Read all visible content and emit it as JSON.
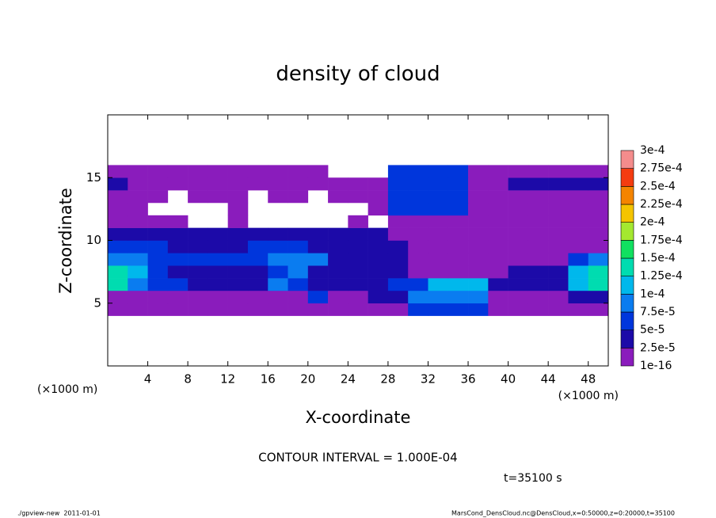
{
  "chart_data": {
    "type": "heatmap",
    "title": "density of cloud",
    "xlabel": "X-coordinate",
    "ylabel": "Z-coordinate",
    "x_units": "(×1000 m)",
    "xlim": [
      0,
      50
    ],
    "xticks": [
      4,
      8,
      12,
      16,
      20,
      24,
      28,
      32,
      36,
      40,
      44,
      48
    ],
    "ylim": [
      0,
      20
    ],
    "yticks": [
      5,
      10,
      15
    ],
    "x": [
      1,
      3,
      5,
      7,
      9,
      11,
      13,
      15,
      17,
      19,
      21,
      23,
      25,
      27,
      29,
      31,
      33,
      35,
      37,
      39,
      41,
      43,
      45,
      47,
      49
    ],
    "y": [
      4.5,
      5.5,
      6.5,
      7.5,
      8.5,
      9.5,
      10.5,
      11.5,
      12.5,
      13.5,
      14.5,
      15.5
    ],
    "values": [
      [
        1e-16,
        1e-16,
        1e-16,
        1e-16,
        1e-16,
        1e-16,
        1e-16,
        1e-16,
        1e-16,
        1e-16,
        1e-16,
        1e-16,
        1e-16,
        1e-16,
        1e-16,
        6e-05,
        6e-05,
        6e-05,
        6e-05,
        1e-16,
        1e-16,
        1e-16,
        1e-16,
        1e-16,
        1e-16
      ],
      [
        1e-16,
        1e-16,
        1e-16,
        1e-16,
        1e-16,
        1e-16,
        1e-16,
        1e-16,
        1e-16,
        1e-16,
        6e-05,
        1e-16,
        1e-16,
        3e-05,
        3e-05,
        9e-05,
        9e-05,
        9e-05,
        9e-05,
        1e-16,
        1e-16,
        1e-16,
        1e-16,
        3e-05,
        3e-05
      ],
      [
        0.00013,
        9e-05,
        6e-05,
        6e-05,
        3e-05,
        3e-05,
        3e-05,
        3e-05,
        9e-05,
        6e-05,
        3e-05,
        3e-05,
        3e-05,
        3e-05,
        6e-05,
        6e-05,
        0.00011,
        0.00011,
        0.00011,
        3e-05,
        3e-05,
        3e-05,
        3e-05,
        0.00011,
        0.00013
      ],
      [
        0.00013,
        0.00011,
        6e-05,
        3e-05,
        3e-05,
        3e-05,
        3e-05,
        3e-05,
        6e-05,
        9e-05,
        3e-05,
        3e-05,
        3e-05,
        3e-05,
        3e-05,
        1e-16,
        1e-16,
        1e-16,
        1e-16,
        1e-16,
        3e-05,
        3e-05,
        3e-05,
        0.00011,
        0.00013
      ],
      [
        9e-05,
        9e-05,
        6e-05,
        6e-05,
        6e-05,
        6e-05,
        6e-05,
        6e-05,
        9e-05,
        9e-05,
        9e-05,
        3e-05,
        3e-05,
        3e-05,
        3e-05,
        1e-16,
        1e-16,
        1e-16,
        1e-16,
        1e-16,
        1e-16,
        1e-16,
        1e-16,
        6e-05,
        9e-05
      ],
      [
        6e-05,
        6e-05,
        6e-05,
        3e-05,
        3e-05,
        3e-05,
        3e-05,
        6e-05,
        6e-05,
        6e-05,
        3e-05,
        3e-05,
        3e-05,
        3e-05,
        3e-05,
        1e-16,
        1e-16,
        1e-16,
        1e-16,
        1e-16,
        1e-16,
        1e-16,
        1e-16,
        1e-16,
        1e-16
      ],
      [
        3e-05,
        3e-05,
        3e-05,
        3e-05,
        3e-05,
        3e-05,
        3e-05,
        3e-05,
        3e-05,
        3e-05,
        3e-05,
        3e-05,
        3e-05,
        3e-05,
        1e-16,
        1e-16,
        1e-16,
        1e-16,
        1e-16,
        1e-16,
        1e-16,
        1e-16,
        1e-16,
        1e-16,
        1e-16
      ],
      [
        1e-16,
        1e-16,
        1e-16,
        1e-16,
        null,
        null,
        1e-16,
        null,
        null,
        null,
        null,
        null,
        1e-16,
        null,
        1e-16,
        1e-16,
        1e-16,
        1e-16,
        1e-16,
        1e-16,
        1e-16,
        1e-16,
        1e-16,
        1e-16,
        1e-16
      ],
      [
        1e-16,
        1e-16,
        null,
        null,
        null,
        null,
        1e-16,
        null,
        null,
        null,
        null,
        null,
        null,
        1e-16,
        6e-05,
        6e-05,
        6e-05,
        6e-05,
        1e-16,
        1e-16,
        1e-16,
        1e-16,
        1e-16,
        1e-16,
        1e-16
      ],
      [
        1e-16,
        1e-16,
        1e-16,
        null,
        1e-16,
        1e-16,
        1e-16,
        null,
        1e-16,
        1e-16,
        null,
        1e-16,
        1e-16,
        1e-16,
        6e-05,
        6e-05,
        6e-05,
        6e-05,
        1e-16,
        1e-16,
        1e-16,
        1e-16,
        1e-16,
        1e-16,
        1e-16
      ],
      [
        3e-05,
        1e-16,
        1e-16,
        1e-16,
        1e-16,
        1e-16,
        1e-16,
        1e-16,
        1e-16,
        1e-16,
        1e-16,
        1e-16,
        1e-16,
        1e-16,
        6e-05,
        6e-05,
        6e-05,
        6e-05,
        1e-16,
        1e-16,
        3e-05,
        3e-05,
        3e-05,
        3e-05,
        3e-05
      ],
      [
        1e-16,
        1e-16,
        1e-16,
        1e-16,
        1e-16,
        1e-16,
        1e-16,
        1e-16,
        1e-16,
        1e-16,
        1e-16,
        null,
        null,
        null,
        6e-05,
        6e-05,
        6e-05,
        6e-05,
        1e-16,
        1e-16,
        1e-16,
        1e-16,
        1e-16,
        1e-16,
        1e-16
      ]
    ],
    "colorbar": {
      "levels": [
        {
          "value": 1e-16,
          "label": "1e-16"
        },
        {
          "value": 2.5e-05,
          "label": "2.5e-5"
        },
        {
          "value": 5e-05,
          "label": "5e-5"
        },
        {
          "value": 7.5e-05,
          "label": "7.5e-5"
        },
        {
          "value": 0.0001,
          "label": "1e-4"
        },
        {
          "value": 0.000125,
          "label": "1.25e-4"
        },
        {
          "value": 0.00015,
          "label": "1.5e-4"
        },
        {
          "value": 0.000175,
          "label": "1.75e-4"
        },
        {
          "value": 0.0002,
          "label": "2e-4"
        },
        {
          "value": 0.000225,
          "label": "2.25e-4"
        },
        {
          "value": 0.00025,
          "label": "2.5e-4"
        },
        {
          "value": 0.000275,
          "label": "2.75e-4"
        },
        {
          "value": 0.0003,
          "label": "3e-4"
        }
      ],
      "colors": [
        "#8a1cbc",
        "#1c0aa8",
        "#0036dc",
        "#0a7cf0",
        "#00b8ec",
        "#00dcb0",
        "#10e060",
        "#a4e830",
        "#f4c400",
        "#f48400",
        "#f43c10",
        "#f48c8c"
      ]
    },
    "annotations": {
      "contour_interval": "CONTOUR INTERVAL = 1.000E-04",
      "time": "t=35100 s",
      "footer_left": "./gpview-new  2011-01-01",
      "footer_right": "MarsCond_DensCloud.nc@DensCloud,x=0:50000,z=0:20000,t=35100"
    }
  }
}
